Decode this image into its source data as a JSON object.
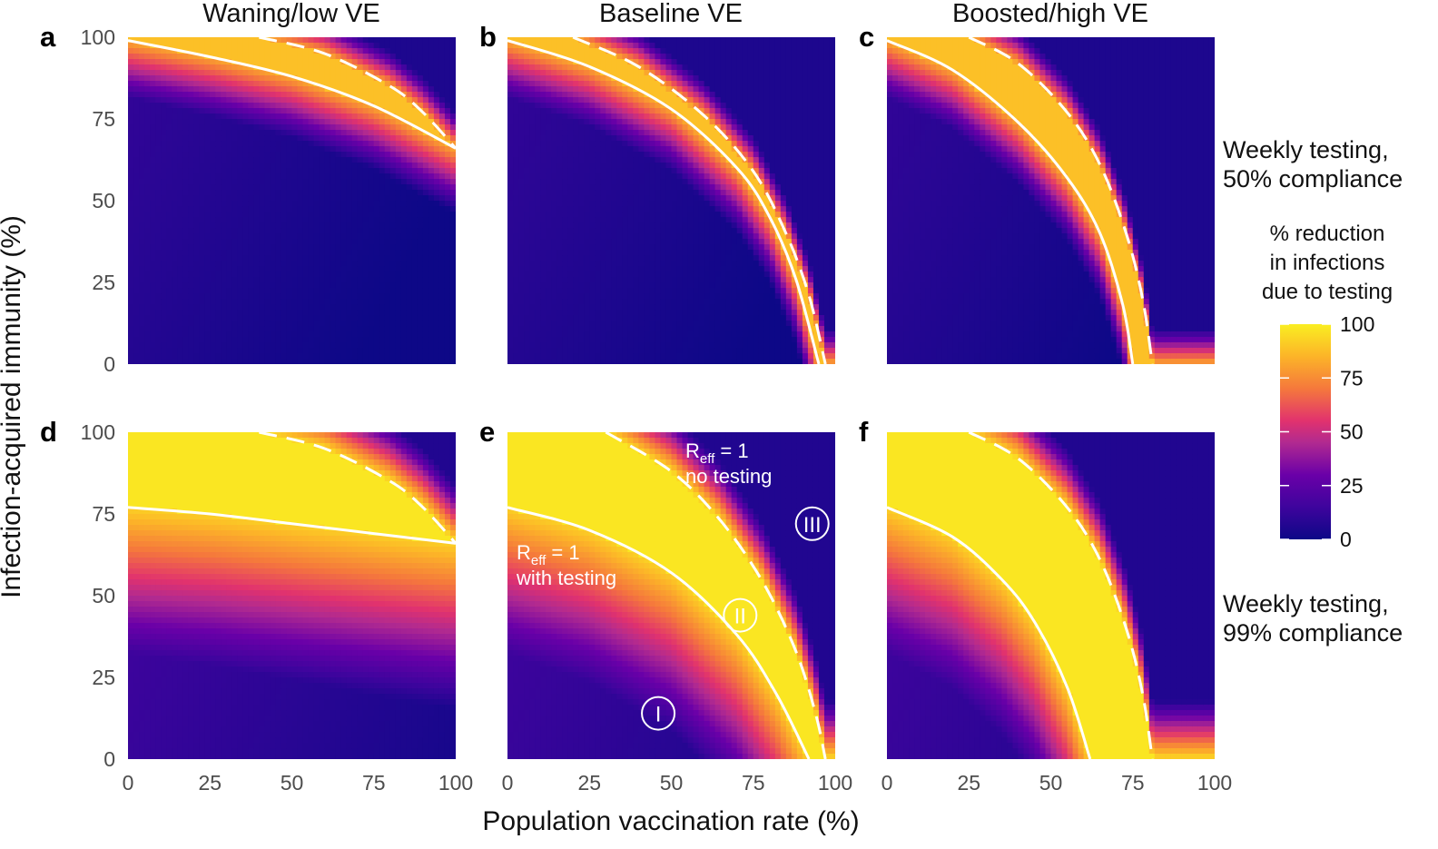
{
  "chart_data": {
    "type": "heatmap",
    "column_titles": [
      "Waning/low VE",
      "Baseline VE",
      "Boosted/high VE"
    ],
    "row_labels": [
      [
        "Weekly testing,",
        "50% compliance"
      ],
      [
        "Weekly testing,",
        "99% compliance"
      ]
    ],
    "xlabel": "Population vaccination rate (%)",
    "ylabel": "Infection-acquired immunity (%)",
    "xlim": [
      0,
      100
    ],
    "ylim": [
      0,
      100
    ],
    "xticks": [
      "0",
      "25",
      "50",
      "75",
      "100"
    ],
    "yticks": [
      "0",
      "25",
      "50",
      "75",
      "100"
    ],
    "colorbar": {
      "title": [
        "% reduction",
        "in infections",
        "due to testing"
      ],
      "ticks": [
        "100",
        "75",
        "50",
        "25",
        "0"
      ],
      "range": [
        0,
        100
      ]
    },
    "panels": [
      {
        "id": "a",
        "row": 0,
        "col": 0,
        "reff1_with_testing": [
          [
            0,
            99
          ],
          [
            25,
            94
          ],
          [
            50,
            88
          ],
          [
            75,
            79
          ],
          [
            100,
            66
          ]
        ],
        "reff1_no_testing": [
          [
            40,
            100
          ],
          [
            60,
            95
          ],
          [
            80,
            85
          ],
          [
            90,
            77
          ],
          [
            100,
            66
          ]
        ]
      },
      {
        "id": "b",
        "row": 0,
        "col": 1,
        "reff1_with_testing": [
          [
            0,
            99
          ],
          [
            25,
            91
          ],
          [
            50,
            78
          ],
          [
            70,
            60
          ],
          [
            80,
            45
          ],
          [
            88,
            26
          ],
          [
            95,
            0
          ]
        ],
        "reff1_no_testing": [
          [
            20,
            100
          ],
          [
            40,
            91
          ],
          [
            60,
            76
          ],
          [
            75,
            59
          ],
          [
            85,
            40
          ],
          [
            92,
            21
          ],
          [
            97,
            0
          ]
        ]
      },
      {
        "id": "c",
        "row": 0,
        "col": 2,
        "reff1_with_testing": [
          [
            0,
            99
          ],
          [
            20,
            90
          ],
          [
            40,
            74
          ],
          [
            55,
            57
          ],
          [
            65,
            40
          ],
          [
            72,
            18
          ],
          [
            75,
            0
          ]
        ],
        "reff1_no_testing": [
          [
            25,
            100
          ],
          [
            40,
            92
          ],
          [
            55,
            77
          ],
          [
            65,
            61
          ],
          [
            73,
            40
          ],
          [
            78,
            20
          ],
          [
            81,
            0
          ]
        ]
      },
      {
        "id": "d",
        "row": 1,
        "col": 0,
        "reff1_with_testing": [
          [
            0,
            77
          ],
          [
            25,
            75
          ],
          [
            50,
            72
          ],
          [
            75,
            69
          ],
          [
            100,
            66
          ]
        ],
        "reff1_no_testing": [
          [
            40,
            100
          ],
          [
            60,
            95
          ],
          [
            80,
            85
          ],
          [
            90,
            77
          ],
          [
            100,
            66
          ]
        ]
      },
      {
        "id": "e",
        "row": 1,
        "col": 1,
        "reff1_with_testing": [
          [
            0,
            77
          ],
          [
            25,
            70
          ],
          [
            50,
            57
          ],
          [
            70,
            38
          ],
          [
            82,
            20
          ],
          [
            92,
            0
          ]
        ],
        "reff1_no_testing": [
          [
            30,
            100
          ],
          [
            50,
            88
          ],
          [
            65,
            73
          ],
          [
            78,
            54
          ],
          [
            88,
            33
          ],
          [
            94,
            14
          ],
          [
            97,
            0
          ]
        ],
        "annotations": {
          "no_testing": {
            "main": "R",
            "sub": "eff",
            "rest": " = 1",
            "line2": "no testing"
          },
          "with_testing": {
            "main": "R",
            "sub": "eff",
            "rest": " = 1",
            "line2": "with testing"
          }
        },
        "regions": [
          {
            "label": "I",
            "x": 46,
            "y": 14
          },
          {
            "label": "II",
            "x": 71,
            "y": 44
          },
          {
            "label": "III",
            "x": 93,
            "y": 72
          }
        ]
      },
      {
        "id": "f",
        "row": 1,
        "col": 2,
        "reff1_with_testing": [
          [
            0,
            77
          ],
          [
            20,
            68
          ],
          [
            35,
            55
          ],
          [
            45,
            42
          ],
          [
            55,
            22
          ],
          [
            62,
            0
          ]
        ],
        "reff1_no_testing": [
          [
            25,
            100
          ],
          [
            40,
            92
          ],
          [
            55,
            77
          ],
          [
            65,
            61
          ],
          [
            73,
            40
          ],
          [
            78,
            20
          ],
          [
            81,
            0
          ]
        ]
      }
    ]
  }
}
